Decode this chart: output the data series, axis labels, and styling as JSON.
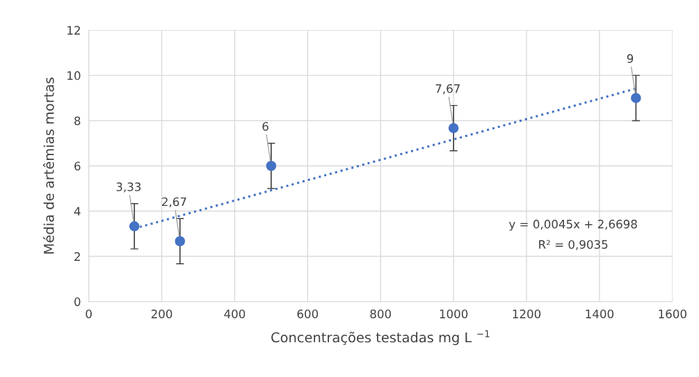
{
  "chart_data": {
    "type": "scatter",
    "xlabel": "Concentrações testadas mg L $^{−1}$",
    "ylabel": "Média de artêmias mortas",
    "x": [
      125,
      250,
      500,
      1000,
      1500
    ],
    "series": [
      {
        "color": "#4472c4",
        "values": [
          3.33,
          2.67,
          6,
          7.67,
          9
        ],
        "errors": [
          1,
          1,
          1,
          1,
          1
        ],
        "value_labels": [
          "3,33",
          "2,67",
          "6",
          "7,67",
          "9"
        ],
        "marker": "circle"
      },
      {
        "type": "line",
        "color": "#4472c4",
        "x": [
          125,
          1500
        ],
        "values": [
          3.23,
          9.42
        ],
        "line_style": "dotted",
        "marker": "none"
      }
    ],
    "annotations": [
      "y = 0,0045x + 2,6698",
      "R² = 0,9035"
    ],
    "xlim": [
      0,
      1600
    ],
    "xticks": [
      0,
      200,
      400,
      600,
      800,
      1000,
      1200,
      1400,
      1600
    ],
    "ylim": [
      0,
      12
    ],
    "yticks": [
      0,
      2,
      4,
      6,
      8,
      10,
      12
    ],
    "grid": true,
    "legend": false
  }
}
